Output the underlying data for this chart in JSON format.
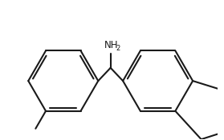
{
  "bg_color": "#ffffff",
  "line_color": "#1a1a1a",
  "line_width": 1.5,
  "figsize": [
    2.79,
    1.75
  ],
  "dpi": 100
}
